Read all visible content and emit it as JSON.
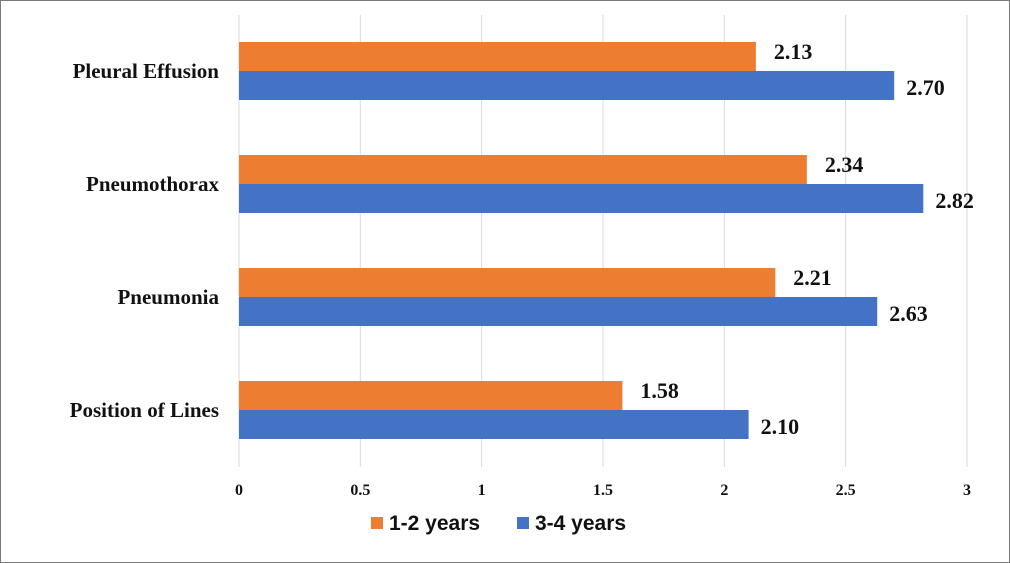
{
  "chart_data": {
    "type": "bar",
    "orientation": "horizontal",
    "title": "",
    "xlabel": "",
    "ylabel": "",
    "categories": [
      "Pleural Effusion",
      "Pneumothorax",
      "Pneumonia",
      "Position of Lines"
    ],
    "series": [
      {
        "name": "1-2 years",
        "color": "#ed7d31",
        "values": [
          2.13,
          2.34,
          2.21,
          1.58
        ],
        "labels": [
          "2.13",
          "2.34",
          "2.21",
          "1.58"
        ]
      },
      {
        "name": "3-4 years",
        "color": "#4472c4",
        "values": [
          2.7,
          2.82,
          2.63,
          2.1
        ],
        "labels": [
          "2.70",
          "2.82",
          "2.63",
          "2.10"
        ]
      }
    ],
    "xlim": [
      0,
      3
    ],
    "xticks": [
      0,
      0.5,
      1,
      1.5,
      2,
      2.5,
      3
    ],
    "xtick_labels": [
      "0",
      "0.5",
      "1",
      "1.5",
      "2",
      "2.5",
      "3"
    ],
    "grid": "vertical",
    "legend_position": "bottom"
  }
}
